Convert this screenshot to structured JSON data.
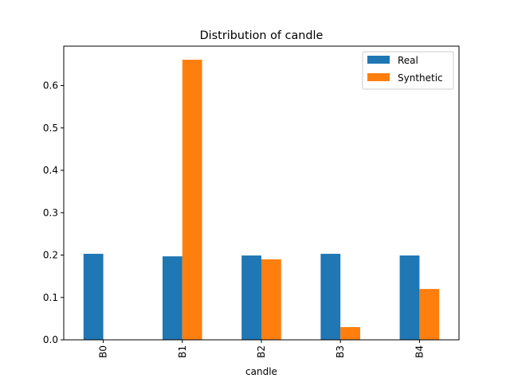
{
  "chart_data": {
    "type": "bar",
    "title": "Distribution of candle",
    "xlabel": "candle",
    "ylabel": "",
    "categories": [
      "B0",
      "B1",
      "B2",
      "B3",
      "B4"
    ],
    "series": [
      {
        "name": "Real",
        "color": "#1f77b4",
        "values": [
          0.203,
          0.197,
          0.199,
          0.203,
          0.199
        ]
      },
      {
        "name": "Synthetic",
        "color": "#ff7f0e",
        "values": [
          0.0,
          0.661,
          0.19,
          0.03,
          0.12
        ]
      }
    ],
    "ylim": [
      0,
      0.693
    ],
    "yticks": [
      "0.0",
      "0.1",
      "0.2",
      "0.3",
      "0.4",
      "0.5",
      "0.6"
    ],
    "legend_position": "upper right",
    "grid": false
  }
}
